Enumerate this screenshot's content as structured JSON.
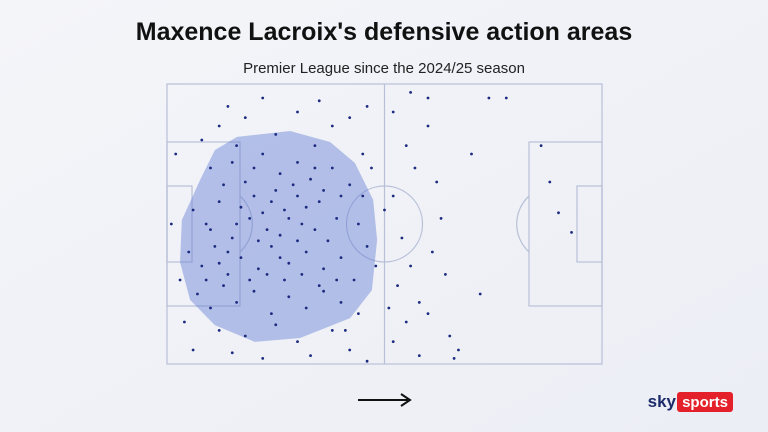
{
  "chart_data": {
    "type": "scatter",
    "title": "Maxence Lacroix's defensive action areas",
    "subtitle": "Premier League since the 2024/25 season",
    "brand": [
      "sky",
      "sports"
    ],
    "color": "#1c2a80",
    "area_color": "#5a78d2",
    "xlim": [
      0,
      100
    ],
    "ylim": [
      0,
      100
    ],
    "x": [
      8,
      12,
      14,
      18,
      22,
      25,
      30,
      35,
      38,
      42,
      10,
      15,
      18,
      22,
      26,
      30,
      34,
      38,
      42,
      45,
      6,
      9,
      12,
      15,
      19,
      23,
      27,
      31,
      35,
      39,
      44,
      46,
      5,
      8,
      11,
      14,
      17,
      21,
      24,
      28,
      32,
      36,
      40,
      43,
      7,
      10,
      13,
      16,
      20,
      24,
      28,
      32,
      36,
      40,
      44,
      12,
      18,
      25,
      30,
      38,
      4,
      6,
      15,
      22,
      33,
      42,
      46,
      20,
      25,
      29,
      33,
      17,
      21,
      26,
      30,
      34,
      37,
      13,
      16,
      20,
      24,
      28,
      32,
      36,
      40,
      10,
      14,
      19,
      23,
      27,
      31,
      35,
      39,
      9,
      12,
      16,
      22,
      26,
      30,
      34,
      52,
      55,
      57,
      52,
      54,
      56,
      53,
      58,
      55,
      52,
      60,
      62,
      63,
      61,
      64,
      60,
      65,
      67,
      70,
      72,
      74,
      78,
      86,
      88,
      90,
      93,
      60,
      56,
      66,
      58,
      2,
      3,
      45,
      47,
      48,
      41,
      50,
      51,
      1,
      46
    ],
    "y": [
      20,
      15,
      8,
      12,
      5,
      18,
      10,
      6,
      15,
      12,
      30,
      28,
      35,
      25,
      32,
      28,
      22,
      30,
      36,
      40,
      45,
      50,
      42,
      55,
      48,
      52,
      45,
      50,
      42,
      48,
      50,
      58,
      60,
      65,
      58,
      68,
      62,
      66,
      58,
      64,
      60,
      66,
      62,
      70,
      75,
      80,
      72,
      78,
      74,
      82,
      76,
      80,
      74,
      78,
      82,
      88,
      90,
      86,
      92,
      88,
      85,
      95,
      96,
      98,
      97,
      95,
      99,
      40,
      38,
      36,
      34,
      44,
      56,
      54,
      56,
      52,
      56,
      36,
      22,
      30,
      42,
      48,
      44,
      38,
      40,
      52,
      60,
      70,
      68,
      70,
      68,
      72,
      70,
      70,
      64,
      50,
      46,
      62,
      40,
      30,
      10,
      22,
      30,
      40,
      55,
      65,
      72,
      78,
      85,
      92,
      15,
      35,
      48,
      60,
      68,
      82,
      90,
      95,
      25,
      75,
      5,
      5,
      22,
      35,
      46,
      53,
      5,
      3,
      98,
      97,
      25,
      70,
      25,
      30,
      65,
      88,
      45,
      80,
      50,
      8
    ],
    "area": {
      "x": [
        16.1,
        28.3,
        37.5,
        43.2,
        47.4,
        48.3,
        47.1,
        42.1,
        30.6,
        20.2,
        11.0,
        5.3,
        3.0,
        3.4,
        7.6,
        11.0
      ],
      "y": [
        18.9,
        16.8,
        20.7,
        28.2,
        41.4,
        55.7,
        73.6,
        83.6,
        90.7,
        92.1,
        86.1,
        77.1,
        63.6,
        48.6,
        34.3,
        23.6
      ]
    }
  }
}
